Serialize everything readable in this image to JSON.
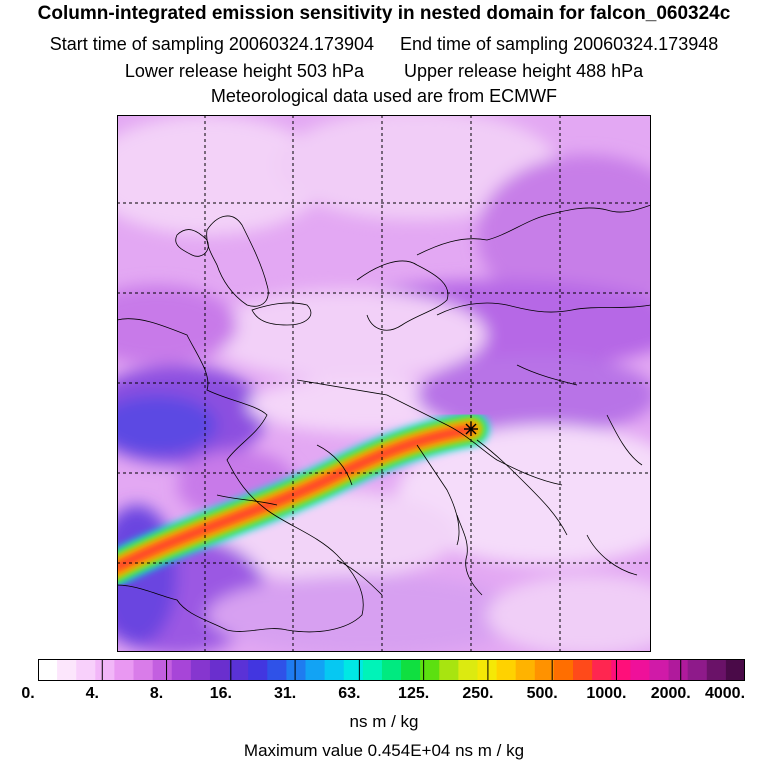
{
  "header": {
    "title": "Column-integrated emission sensitivity in nested domain for falcon_060324c",
    "start_time": "Start time of sampling 20060324.173904",
    "end_time": "End time of sampling 20060324.173948",
    "lower_release": "Lower release height  503 hPa",
    "upper_release": "Upper release height  488 hPa",
    "met_data": "Meteorological data used are from ECMWF"
  },
  "colorbar": {
    "tick_labels": [
      "0.",
      "4.",
      "8.",
      "16.",
      "31.",
      "63.",
      "125.",
      "250.",
      "500.",
      "1000.",
      "2000.",
      "4000."
    ],
    "units": "ns m / kg",
    "colors": [
      "#ffffff",
      "#fce6fc",
      "#f8d0fb",
      "#f2b6f8",
      "#e998f2",
      "#d97ce9",
      "#c35fe0",
      "#a745d8",
      "#8636cf",
      "#6a2fce",
      "#5a32d6",
      "#4236e0",
      "#2f52e8",
      "#1f7cf0",
      "#12a3f4",
      "#06c8f2",
      "#00e8e4",
      "#00f3b8",
      "#00ea80",
      "#10df40",
      "#5ce010",
      "#a8e410",
      "#dcea10",
      "#f5e806",
      "#ffd200",
      "#ffb300",
      "#ff9200",
      "#ff6e00",
      "#ff4a1a",
      "#ff2650",
      "#ff0f7a",
      "#ef109a",
      "#d01aa8",
      "#b01a9c",
      "#8e1a8a",
      "#6a1268",
      "#4a0a48"
    ]
  },
  "max_value": "Maximum value  0.454E+04 ns m / kg",
  "map": {
    "gridlines": "dashed",
    "release_site_marker": "cross",
    "plume_color_scale": [
      "#00e8e4",
      "#1f7cf0",
      "#5ce010",
      "#ffd200",
      "#ff6e00",
      "#ff2650"
    ]
  }
}
